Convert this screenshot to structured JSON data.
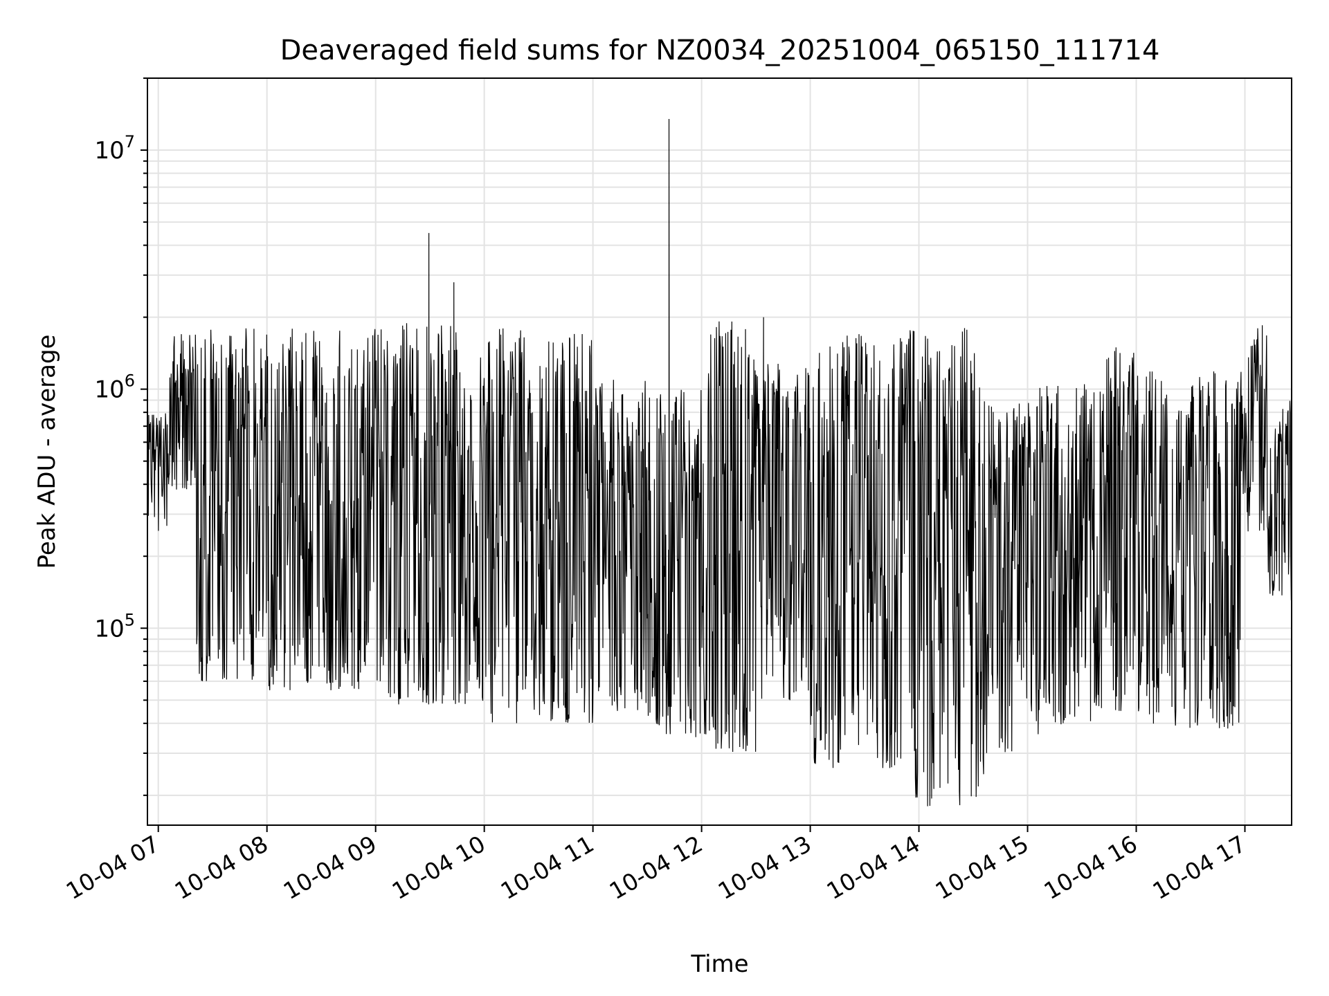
{
  "chart_data": {
    "type": "line",
    "title": "Deaveraged field sums for NZ0034_20251004_065150_111714",
    "xlabel": "Time",
    "ylabel": "Peak ADU - average",
    "yscale": "log",
    "ylim": [
      15000,
      20000000
    ],
    "xlim_hours": [
      6.9,
      17.43
    ],
    "grid": true,
    "line_color": "#000000",
    "grid_color": "#e3e3e3",
    "x_ticks": [
      {
        "value": 7,
        "label": "10-04 07"
      },
      {
        "value": 8,
        "label": "10-04 08"
      },
      {
        "value": 9,
        "label": "10-04 09"
      },
      {
        "value": 10,
        "label": "10-04 10"
      },
      {
        "value": 11,
        "label": "10-04 11"
      },
      {
        "value": 12,
        "label": "10-04 12"
      },
      {
        "value": 13,
        "label": "10-04 13"
      },
      {
        "value": 14,
        "label": "10-04 14"
      },
      {
        "value": 15,
        "label": "10-04 15"
      },
      {
        "value": 16,
        "label": "10-04 16"
      },
      {
        "value": 17,
        "label": "10-04 17"
      }
    ],
    "y_ticks": [
      {
        "value": 100000,
        "base": "10",
        "exp": "5"
      },
      {
        "value": 1000000,
        "base": "10",
        "exp": "6"
      },
      {
        "value": 10000000,
        "base": "10",
        "exp": "7"
      }
    ],
    "segments": [
      {
        "t0": 6.9,
        "t1": 7.1,
        "lo": 250000,
        "hi": 800000
      },
      {
        "t0": 7.1,
        "t1": 7.35,
        "lo": 380000,
        "hi": 1700000
      },
      {
        "t0": 7.35,
        "t1": 8.0,
        "lo": 60000,
        "hi": 1800000
      },
      {
        "t0": 8.0,
        "t1": 9.0,
        "lo": 55000,
        "hi": 1800000
      },
      {
        "t0": 9.0,
        "t1": 10.0,
        "lo": 48000,
        "hi": 1900000
      },
      {
        "t0": 10.0,
        "t1": 11.0,
        "lo": 40000,
        "hi": 1800000
      },
      {
        "t0": 11.0,
        "t1": 11.5,
        "lo": 45000,
        "hi": 1100000
      },
      {
        "t0": 11.5,
        "t1": 12.0,
        "lo": 35000,
        "hi": 1000000
      },
      {
        "t0": 12.0,
        "t1": 12.5,
        "lo": 30000,
        "hi": 2000000
      },
      {
        "t0": 12.5,
        "t1": 13.0,
        "lo": 50000,
        "hi": 1300000
      },
      {
        "t0": 13.0,
        "t1": 13.9,
        "lo": 26000,
        "hi": 1700000
      },
      {
        "t0": 13.9,
        "t1": 14.6,
        "lo": 18000,
        "hi": 1800000
      },
      {
        "t0": 14.6,
        "t1": 15.1,
        "lo": 30000,
        "hi": 900000
      },
      {
        "t0": 15.1,
        "t1": 15.6,
        "lo": 38000,
        "hi": 1050000
      },
      {
        "t0": 15.6,
        "t1": 16.0,
        "lo": 45000,
        "hi": 1500000
      },
      {
        "t0": 16.0,
        "t1": 17.0,
        "lo": 38000,
        "hi": 1200000
      },
      {
        "t0": 17.0,
        "t1": 17.2,
        "lo": 250000,
        "hi": 1800000
      },
      {
        "t0": 17.2,
        "t1": 17.43,
        "lo": 130000,
        "hi": 900000
      }
    ],
    "spikes": [
      {
        "t": 9.49,
        "value": 4500000
      },
      {
        "t": 9.72,
        "value": 2800000
      },
      {
        "t": 11.7,
        "value": 13500000
      },
      {
        "t": 12.57,
        "value": 2000000
      },
      {
        "t": 14.08,
        "value": 18000
      },
      {
        "t": 14.42,
        "value": 1800000
      },
      {
        "t": 17.16,
        "value": 1850000
      }
    ]
  }
}
